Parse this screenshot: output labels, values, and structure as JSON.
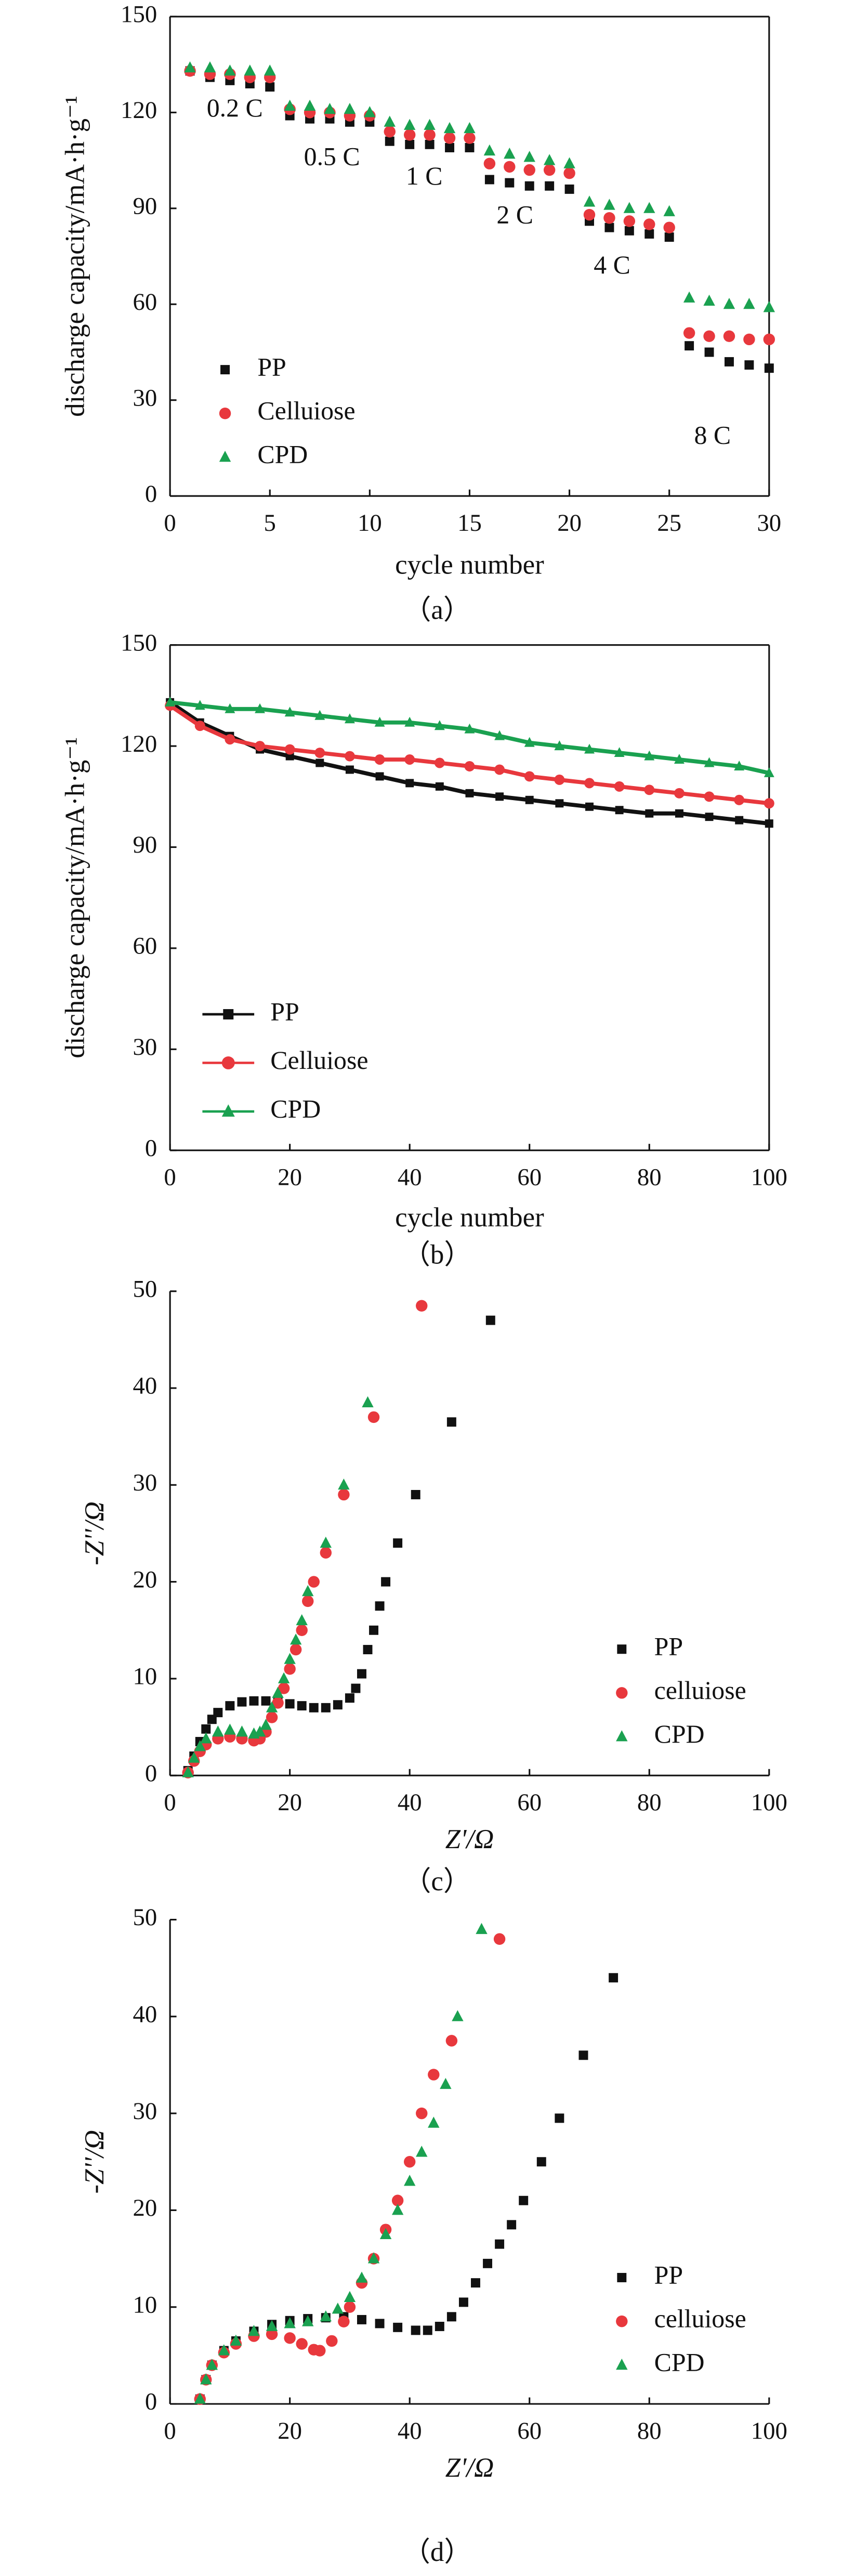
{
  "chart_data": [
    {
      "type": "scatter",
      "xlabel": "cycle number",
      "ylabel": "discharge capacity/mA·h·g⁻¹",
      "caption": "（a）",
      "x": [
        1,
        2,
        3,
        4,
        5,
        6,
        7,
        8,
        9,
        10,
        11,
        12,
        13,
        14,
        15,
        16,
        17,
        18,
        19,
        20,
        21,
        22,
        23,
        24,
        25,
        26,
        27,
        28,
        29,
        30
      ],
      "series": [
        {
          "name": "PP",
          "color": "#111111",
          "marker": "square",
          "values": [
            133,
            131,
            130,
            129,
            128,
            119,
            118,
            118,
            117,
            117,
            111,
            110,
            110,
            109,
            109,
            99,
            98,
            97,
            97,
            96,
            86,
            84,
            83,
            82,
            81,
            47,
            45,
            42,
            41,
            40
          ]
        },
        {
          "name": "Celluiose",
          "color": "#e8383d",
          "marker": "circle",
          "values": [
            133,
            132,
            132,
            131,
            131,
            121,
            120,
            120,
            119,
            119,
            114,
            113,
            113,
            112,
            112,
            104,
            103,
            102,
            102,
            101,
            88,
            87,
            86,
            85,
            84,
            51,
            50,
            50,
            49,
            49
          ]
        },
        {
          "name": "CPD",
          "color": "#1aa150",
          "marker": "triangle",
          "values": [
            134,
            134,
            133,
            133,
            133,
            122,
            122,
            121,
            121,
            120,
            117,
            116,
            116,
            115,
            115,
            108,
            107,
            106,
            105,
            104,
            92,
            91,
            90,
            90,
            89,
            62,
            61,
            60,
            60,
            59
          ]
        }
      ],
      "annotations": [
        "0.2 C",
        "0.5 C",
        "1 C",
        "2 C",
        "4 C",
        "8 C"
      ],
      "xlim": [
        0,
        30
      ],
      "ylim": [
        0,
        150
      ],
      "xticks": [
        0,
        5,
        10,
        15,
        20,
        25,
        30
      ],
      "yticks": [
        0,
        30,
        60,
        90,
        120,
        150
      ],
      "legend": "lower left",
      "frame": true
    },
    {
      "type": "line",
      "xlabel": "cycle number",
      "ylabel": "discharge capacity/mA·h·g⁻¹",
      "caption": "（b）",
      "x": [
        0,
        5,
        10,
        15,
        20,
        25,
        30,
        35,
        40,
        45,
        50,
        55,
        60,
        65,
        70,
        75,
        80,
        85,
        90,
        95,
        100
      ],
      "series": [
        {
          "name": "PP",
          "color": "#111111",
          "marker": "square",
          "values": [
            133,
            127,
            123,
            119,
            117,
            115,
            113,
            111,
            109,
            108,
            106,
            105,
            104,
            103,
            102,
            101,
            100,
            100,
            99,
            98,
            97
          ]
        },
        {
          "name": "Celluiose",
          "color": "#e8383d",
          "marker": "circle",
          "values": [
            132,
            126,
            122,
            120,
            119,
            118,
            117,
            116,
            116,
            115,
            114,
            113,
            111,
            110,
            109,
            108,
            107,
            106,
            105,
            104,
            103
          ]
        },
        {
          "name": "CPD",
          "color": "#1aa150",
          "marker": "triangle",
          "values": [
            133,
            132,
            131,
            131,
            130,
            129,
            128,
            127,
            127,
            126,
            125,
            123,
            121,
            120,
            119,
            118,
            117,
            116,
            115,
            114,
            112
          ]
        }
      ],
      "xlim": [
        0,
        100
      ],
      "ylim": [
        0,
        150
      ],
      "xticks": [
        0,
        20,
        40,
        60,
        80,
        100
      ],
      "yticks": [
        0,
        30,
        60,
        90,
        120,
        150
      ],
      "legend": "lower left",
      "frame": true
    },
    {
      "type": "scatter",
      "xlabel": "Z'/Ω",
      "ylabel": "-Z''/Ω",
      "caption": "（c）",
      "series": [
        {
          "name": "PP",
          "color": "#111111",
          "marker": "square",
          "x": [
            3,
            4,
            5,
            6,
            7,
            8,
            10,
            12,
            14,
            16,
            18,
            20,
            22,
            24,
            26,
            28,
            30,
            31,
            32,
            33,
            34,
            35,
            36,
            38,
            41,
            47,
            53.5
          ],
          "values": [
            0.5,
            2,
            3.5,
            4.8,
            5.8,
            6.5,
            7.2,
            7.6,
            7.7,
            7.7,
            7.6,
            7.4,
            7.2,
            7,
            7,
            7.3,
            8,
            9,
            10.5,
            13,
            15,
            17.5,
            20,
            24,
            29,
            36.5,
            47
          ]
        },
        {
          "name": "celluiose",
          "color": "#e8383d",
          "marker": "circle",
          "x": [
            3,
            4,
            5,
            6,
            8,
            10,
            12,
            14,
            15,
            16,
            17,
            18,
            19,
            20,
            21,
            22,
            23,
            24,
            26,
            29,
            34,
            42
          ],
          "values": [
            0.3,
            1.5,
            2.5,
            3.2,
            3.8,
            4,
            3.8,
            3.6,
            3.8,
            4.5,
            6,
            7.5,
            9,
            11,
            13,
            15,
            18,
            20,
            23,
            29,
            37,
            48.5
          ]
        },
        {
          "name": "CPD",
          "color": "#1aa150",
          "marker": "triangle",
          "x": [
            3,
            4,
            5,
            6,
            8,
            10,
            12,
            14,
            15,
            16,
            17,
            18,
            19,
            20,
            21,
            22,
            23,
            26,
            29,
            33
          ],
          "values": [
            0.3,
            1.8,
            3,
            3.8,
            4.5,
            4.7,
            4.5,
            4.3,
            4.5,
            5.2,
            7,
            8.5,
            10,
            12,
            14,
            16,
            19,
            24,
            30,
            38.5
          ]
        }
      ],
      "xlim": [
        0,
        100
      ],
      "ylim": [
        0,
        50
      ],
      "xticks": [
        0,
        20,
        40,
        60,
        80,
        100
      ],
      "yticks": [
        0,
        10,
        20,
        30,
        40,
        50
      ],
      "legend": "lower right",
      "frame": false
    },
    {
      "type": "scatter",
      "xlabel": "Z'/Ω",
      "ylabel": "-Z''/Ω",
      "caption": "（d）",
      "series": [
        {
          "name": "PP",
          "color": "#111111",
          "marker": "square",
          "x": [
            5,
            6,
            7,
            9,
            11,
            14,
            17,
            20,
            23,
            26,
            29,
            32,
            35,
            38,
            41,
            43,
            45,
            47,
            49,
            51,
            53,
            55,
            57,
            59,
            62,
            65,
            69,
            74
          ],
          "values": [
            0.5,
            2.5,
            4,
            5.5,
            6.5,
            7.5,
            8.2,
            8.6,
            8.8,
            8.9,
            9,
            8.7,
            8.3,
            7.9,
            7.6,
            7.6,
            8,
            9,
            10.5,
            12.5,
            14.5,
            16.5,
            18.5,
            21,
            25,
            29.5,
            36,
            44
          ]
        },
        {
          "name": "celluiose",
          "color": "#e8383d",
          "marker": "circle",
          "x": [
            5,
            6,
            7,
            9,
            11,
            14,
            17,
            20,
            22,
            24,
            25,
            27,
            29,
            30,
            32,
            34,
            36,
            38,
            40,
            42,
            44,
            47,
            55
          ],
          "values": [
            0.5,
            2.5,
            4,
            5.3,
            6.2,
            7,
            7.2,
            6.8,
            6.2,
            5.6,
            5.5,
            6.5,
            8.5,
            10,
            12.5,
            15,
            18,
            21,
            25,
            30,
            34,
            37.5,
            48
          ]
        },
        {
          "name": "CPD",
          "color": "#1aa150",
          "marker": "triangle",
          "x": [
            5,
            6,
            7,
            9,
            11,
            14,
            17,
            20,
            23,
            26,
            28,
            30,
            32,
            34,
            36,
            38,
            40,
            42,
            44,
            46,
            48,
            52
          ],
          "values": [
            0.5,
            2.5,
            4,
            5.5,
            6.5,
            7.5,
            8,
            8.3,
            8.5,
            9,
            9.8,
            11,
            13,
            15,
            17.5,
            20,
            23,
            26,
            29,
            33,
            40,
            49
          ]
        }
      ],
      "xlim": [
        0,
        100
      ],
      "ylim": [
        0,
        50
      ],
      "xticks": [
        0,
        20,
        40,
        60,
        80,
        100
      ],
      "yticks": [
        0,
        10,
        20,
        30,
        40,
        50
      ],
      "legend": "lower right",
      "frame": false
    }
  ]
}
